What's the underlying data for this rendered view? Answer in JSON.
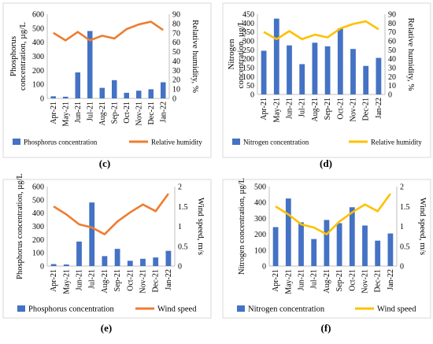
{
  "colors": {
    "bar": "#4472C4",
    "humidity_c": "#ED7D31",
    "humidity_d": "#FFC000",
    "wind_e": "#ED7D31",
    "wind_f": "#FFC000",
    "frame": "#d9d9d9",
    "axis": "#bfbfbf"
  },
  "chart_data": [
    {
      "type": "bar+line",
      "panel_label": "(c)",
      "categories": [
        "Apr-21",
        "May-21",
        "Jun-21",
        "Jul-21",
        "Aug-21",
        "Sep-21",
        "Oct-21",
        "Nov-21",
        "Dec-21",
        "Jan-22"
      ],
      "ylabel": "Phosphorus concentration, µg/L",
      "ylim": [
        0,
        600
      ],
      "yticks": [
        "0",
        "100",
        "200",
        "300",
        "400",
        "500",
        "600"
      ],
      "y2label": "Relative humidity, %",
      "y2lim": [
        0,
        90
      ],
      "y2ticks": [
        "0",
        "10",
        "20",
        "30",
        "40",
        "50",
        "60",
        "70",
        "80",
        "90"
      ],
      "series": [
        {
          "name": "Phosphorus concentration",
          "kind": "bar",
          "axis": "left",
          "values": [
            15,
            12,
            185,
            480,
            75,
            130,
            40,
            55,
            65,
            115
          ]
        },
        {
          "name": "Relative humidity",
          "kind": "line",
          "axis": "right",
          "values": [
            70,
            62,
            71,
            62,
            67,
            64,
            74,
            79,
            82,
            73
          ]
        }
      ],
      "legend": "bottom"
    },
    {
      "type": "bar+line",
      "panel_label": "(d)",
      "categories": [
        "Apr-21",
        "May-21",
        "Jun-21",
        "Jul-21",
        "Aug-21",
        "Sep-21",
        "Oct-21",
        "Nov-21",
        "Dec-21",
        "Jan-22"
      ],
      "ylabel": "Nitrogen concentration, µg/L",
      "ylim": [
        0,
        450
      ],
      "yticks": [
        "0",
        "50",
        "100",
        "150",
        "200",
        "250",
        "300",
        "350",
        "400",
        "450"
      ],
      "y2label": "Relative humidity, %",
      "y2lim": [
        0,
        90
      ],
      "y2ticks": [
        "0",
        "10",
        "20",
        "30",
        "40",
        "50",
        "60",
        "70",
        "80",
        "90"
      ],
      "series": [
        {
          "name": "Nitrogen concentration",
          "kind": "bar",
          "axis": "left",
          "values": [
            245,
            425,
            275,
            170,
            290,
            270,
            370,
            255,
            160,
            205
          ]
        },
        {
          "name": "Relative humidity",
          "kind": "line",
          "axis": "right",
          "values": [
            70,
            62,
            71,
            62,
            67,
            64,
            74,
            79,
            82,
            73
          ]
        }
      ],
      "legend": "bottom"
    },
    {
      "type": "bar+line",
      "panel_label": "(e)",
      "categories": [
        "Apr-21",
        "May-21",
        "Jun-21",
        "Jul-21",
        "Aug-21",
        "Sep-21",
        "Oct-21",
        "Nov-21",
        "Dec-21",
        "Jan-22"
      ],
      "ylabel": "Phosphorus concentration, µg/L",
      "ylim": [
        0,
        600
      ],
      "yticks": [
        "0",
        "100",
        "200",
        "300",
        "400",
        "500",
        "600"
      ],
      "y2label": "Wind speed, m/s",
      "y2lim": [
        0,
        2
      ],
      "y2ticks": [
        "0",
        "0.5",
        "1",
        "1.5",
        "2"
      ],
      "series": [
        {
          "name": "Phosphorus concentration",
          "kind": "bar",
          "axis": "left",
          "values": [
            15,
            12,
            185,
            480,
            75,
            130,
            40,
            55,
            65,
            115
          ]
        },
        {
          "name": "Wind speed",
          "kind": "line",
          "axis": "right",
          "values": [
            1.5,
            1.3,
            1.05,
            0.97,
            0.8,
            1.12,
            1.35,
            1.55,
            1.38,
            1.82
          ]
        }
      ],
      "legend": "bottom"
    },
    {
      "type": "bar+line",
      "panel_label": "(f)",
      "categories": [
        "Apr-21",
        "May-21",
        "Jun-21",
        "Jul-21",
        "Aug-21",
        "Sep-21",
        "Oct-21",
        "Nov-21",
        "Dec-21",
        "Jan-22"
      ],
      "ylabel": "Nitrogen concentration, µg/L",
      "ylim": [
        0,
        500
      ],
      "yticks": [
        "0",
        "100",
        "200",
        "300",
        "400",
        "500"
      ],
      "y2label": "Wind speed, m/s",
      "y2lim": [
        0,
        2
      ],
      "y2ticks": [
        "0",
        "0.5",
        "1",
        "1.5",
        "2"
      ],
      "series": [
        {
          "name": "Nitrogen concentration",
          "kind": "bar",
          "axis": "left",
          "values": [
            245,
            425,
            275,
            170,
            290,
            270,
            370,
            255,
            160,
            205
          ]
        },
        {
          "name": "Wind speed",
          "kind": "line",
          "axis": "right",
          "values": [
            1.5,
            1.3,
            1.05,
            0.97,
            0.8,
            1.12,
            1.35,
            1.55,
            1.38,
            1.82
          ]
        }
      ],
      "legend": "bottom"
    }
  ]
}
